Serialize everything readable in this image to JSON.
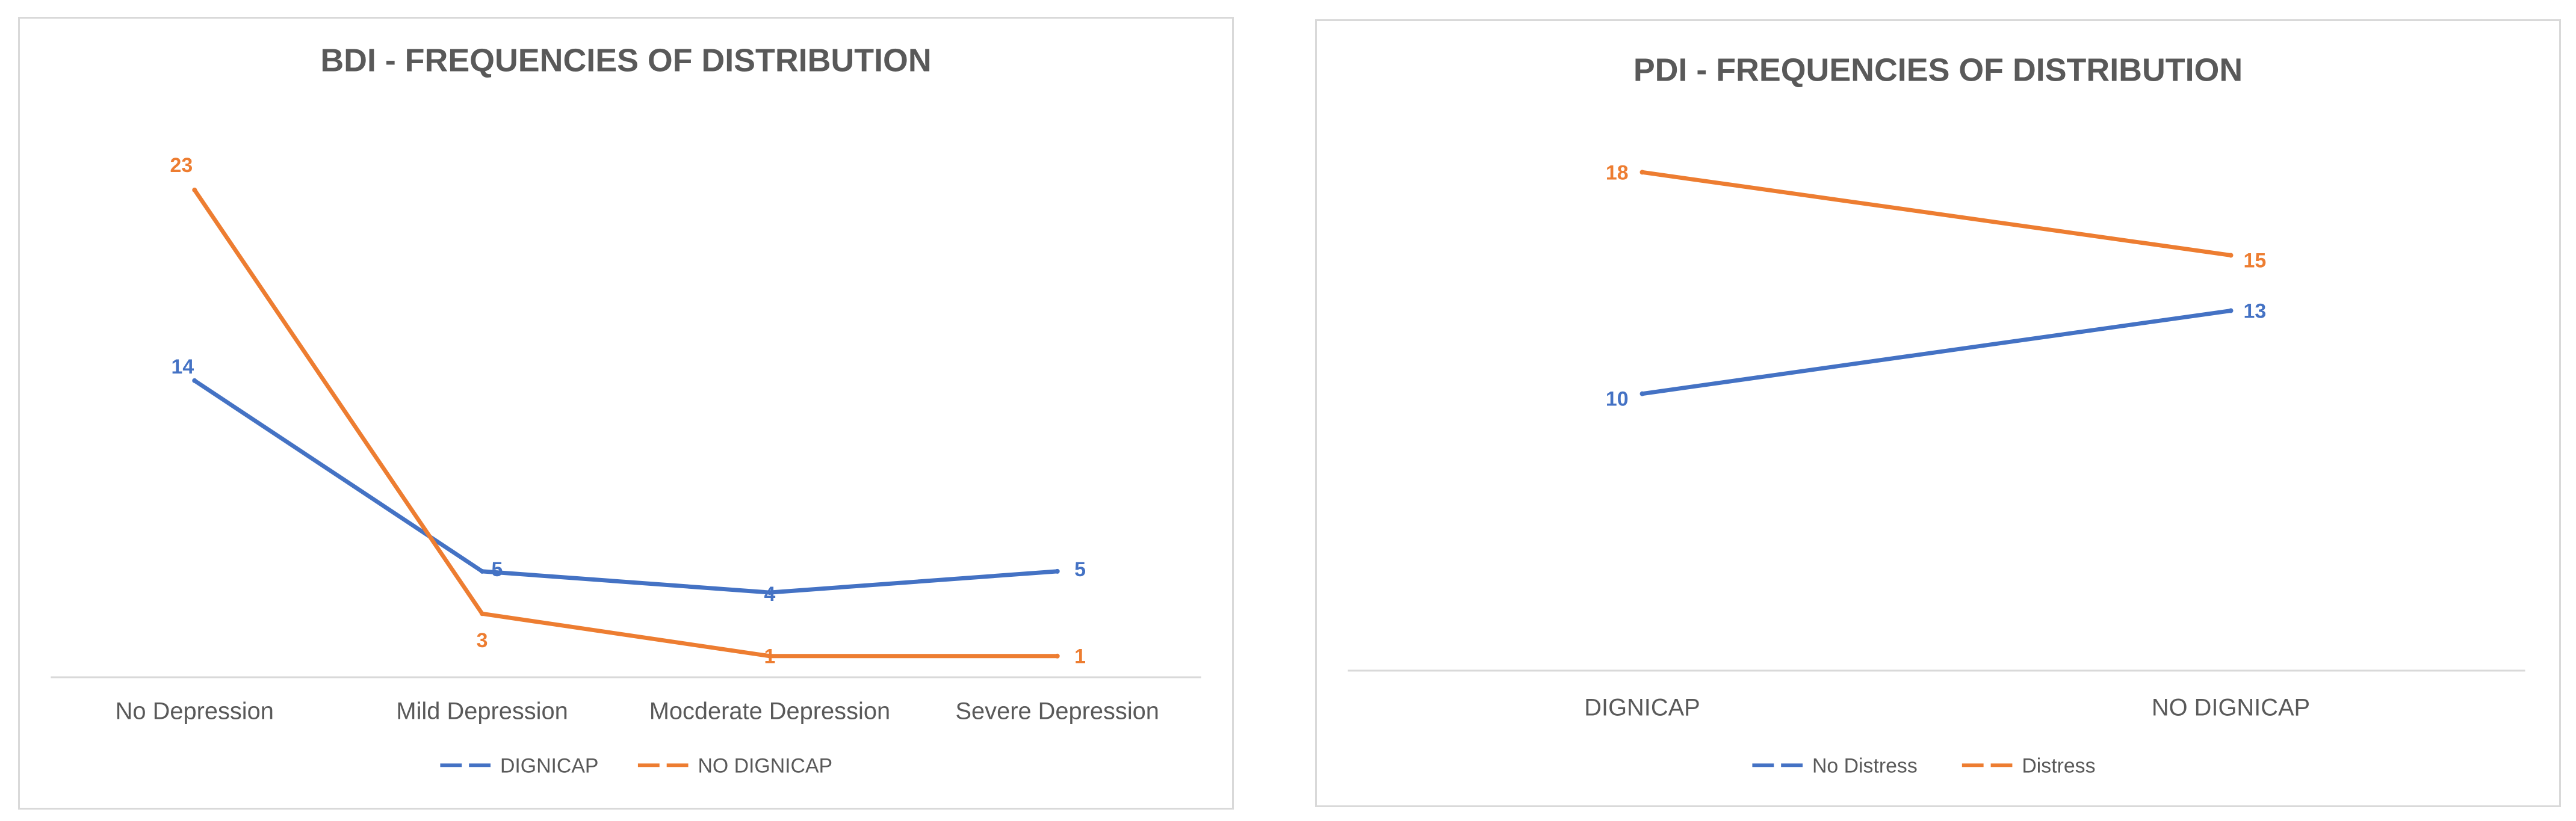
{
  "chart_data": [
    {
      "type": "line",
      "title": "BDI - FREQUENCIES OF DISTRIBUTION",
      "categories": [
        "No Depression",
        "Mild Depression",
        "Mocderate Depression",
        "Severe Depression"
      ],
      "series": [
        {
          "name": "DIGNICAP",
          "values": [
            14,
            5,
            4,
            5
          ],
          "color": "#4472c4"
        },
        {
          "name": "NO DIGNICAP",
          "values": [
            23,
            3,
            1,
            1
          ],
          "color": "#ed7d31"
        }
      ],
      "ylim": [
        0,
        26
      ],
      "xlabel": "",
      "ylabel": "",
      "grid": false,
      "data_labels": true,
      "legend_position": "bottom"
    },
    {
      "type": "line",
      "title": "PDI - FREQUENCIES OF DISTRIBUTION",
      "categories": [
        "DIGNICAP",
        "NO DIGNICAP"
      ],
      "series": [
        {
          "name": "No Distress",
          "values": [
            10,
            13
          ],
          "color": "#4472c4"
        },
        {
          "name": "Distress",
          "values": [
            18,
            15
          ],
          "color": "#ed7d31"
        }
      ],
      "ylim": [
        0,
        20
      ],
      "xlabel": "",
      "ylabel": "",
      "grid": false,
      "data_labels": true,
      "legend_position": "bottom"
    }
  ]
}
